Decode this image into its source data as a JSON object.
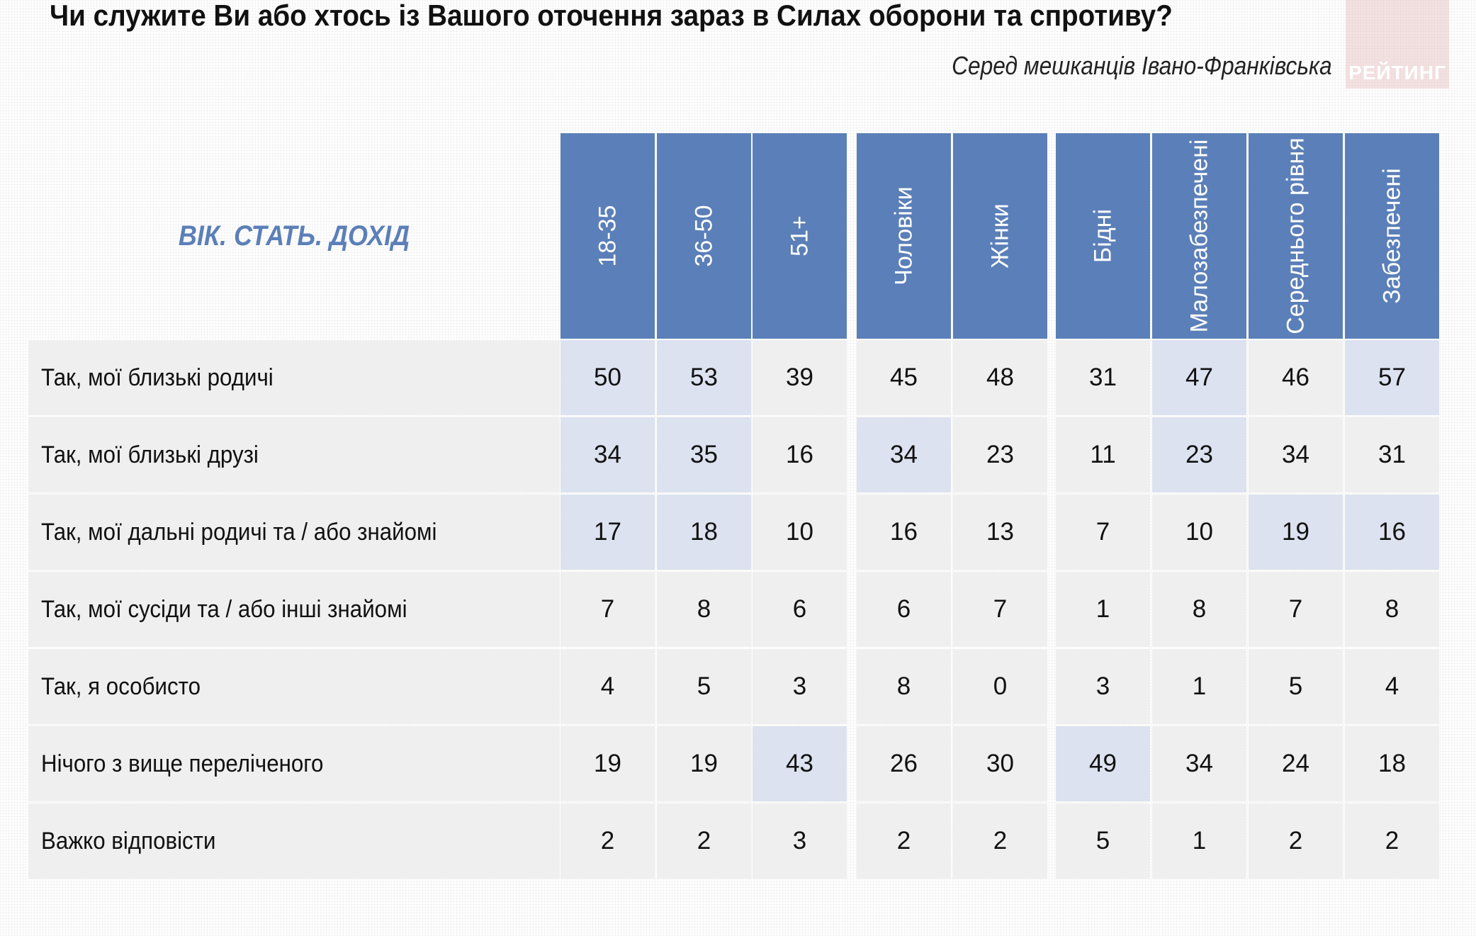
{
  "header": {
    "title": "Чи служите Ви або хтось із Вашого оточення зараз в Силах оборони та спротиву?",
    "subtitle": "Серед мешканців Івано-Франківська",
    "logo_text": "РЕЙТИНГ"
  },
  "colors": {
    "header_fill": "#5b7fb8",
    "category_title": "#5b7fb8",
    "highlight_cell": "#dce2ef",
    "cell": "#efefef"
  },
  "chart_data": {
    "type": "table",
    "category_title": "ВІК. СТАТЬ. ДОХІД",
    "column_groups": [
      [
        "18-35",
        "36-50",
        "51+"
      ],
      [
        "Чоловіки",
        "Жінки"
      ],
      [
        "Бідні",
        "Малозабезпечені",
        "Середнього рівня",
        "Забезпечені"
      ]
    ],
    "columns": [
      "18-35",
      "36-50",
      "51+",
      "Чоловіки",
      "Жінки",
      "Бідні",
      "Малозабезпечені",
      "Середнього рівня",
      "Забезпечені"
    ],
    "rows": [
      {
        "label": "Так, мої близькі родичі",
        "values": [
          "50",
          "53",
          "39",
          "45",
          "48",
          "31",
          "47",
          "46",
          "57"
        ],
        "highlight": [
          true,
          true,
          false,
          false,
          false,
          false,
          true,
          false,
          true
        ]
      },
      {
        "label": "Так, мої близькі друзі",
        "values": [
          "34",
          "35",
          "16",
          "34",
          "23",
          "11",
          "23",
          "34",
          "31"
        ],
        "highlight": [
          true,
          true,
          false,
          true,
          false,
          false,
          true,
          false,
          false
        ]
      },
      {
        "label": "Так, мої дальні родичі та / або знайомі",
        "values": [
          "17",
          "18",
          "10",
          "16",
          "13",
          "7",
          "10",
          "19",
          "16"
        ],
        "highlight": [
          true,
          true,
          false,
          false,
          false,
          false,
          false,
          true,
          true
        ]
      },
      {
        "label": "Так, мої сусіди та / або інші знайомі",
        "values": [
          "7",
          "8",
          "6",
          "6",
          "7",
          "1",
          "8",
          "7",
          "8"
        ],
        "highlight": [
          false,
          false,
          false,
          false,
          false,
          false,
          false,
          false,
          false
        ]
      },
      {
        "label": "Так, я особисто",
        "values": [
          "4",
          "5",
          "3",
          "8",
          "0",
          "3",
          "1",
          "5",
          "4"
        ],
        "highlight": [
          false,
          false,
          false,
          false,
          false,
          false,
          false,
          false,
          false
        ]
      },
      {
        "label": "Нічого з вище переліченого",
        "values": [
          "19",
          "19",
          "43",
          "26",
          "30",
          "49",
          "34",
          "24",
          "18"
        ],
        "highlight": [
          false,
          false,
          true,
          false,
          false,
          true,
          false,
          false,
          false
        ]
      },
      {
        "label": "Важко відповісти",
        "values": [
          "2",
          "2",
          "3",
          "2",
          "2",
          "5",
          "1",
          "2",
          "2"
        ],
        "highlight": [
          false,
          false,
          false,
          false,
          false,
          false,
          false,
          false,
          false
        ]
      }
    ]
  }
}
